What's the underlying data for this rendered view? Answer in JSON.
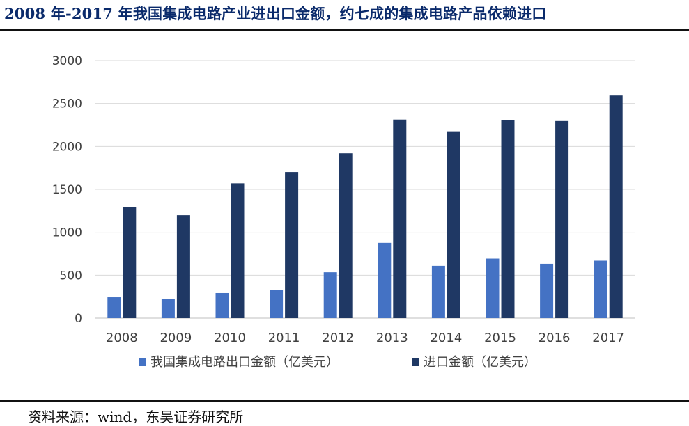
{
  "title": "2008 年-2017 年我国集成电路产业进出口金额，约七成的集成电路产品依赖进口",
  "source": "资料来源：wind，东吴证券研究所",
  "colors": {
    "export": "#4472c4",
    "import": "#1f3864",
    "grid": "#d9d9d9",
    "axis_text": "#404040"
  },
  "chart_data": {
    "type": "bar",
    "categories": [
      "2008",
      "2009",
      "2010",
      "2011",
      "2012",
      "2013",
      "2014",
      "2015",
      "2016",
      "2017"
    ],
    "series": [
      {
        "name": "我国集成电路出口金额（亿美元）",
        "values": [
          243,
          225,
          292,
          326,
          534,
          877,
          609,
          693,
          633,
          669
        ]
      },
      {
        "name": "进口金额（亿美元）",
        "values": [
          1295,
          1199,
          1570,
          1702,
          1920,
          2313,
          2176,
          2307,
          2296,
          2593
        ]
      }
    ],
    "yticks": [
      "0",
      "500",
      "1000",
      "1500",
      "2000",
      "2500",
      "3000"
    ],
    "ylim": [
      0,
      3000
    ],
    "grid": true,
    "legend_position": "bottom"
  }
}
